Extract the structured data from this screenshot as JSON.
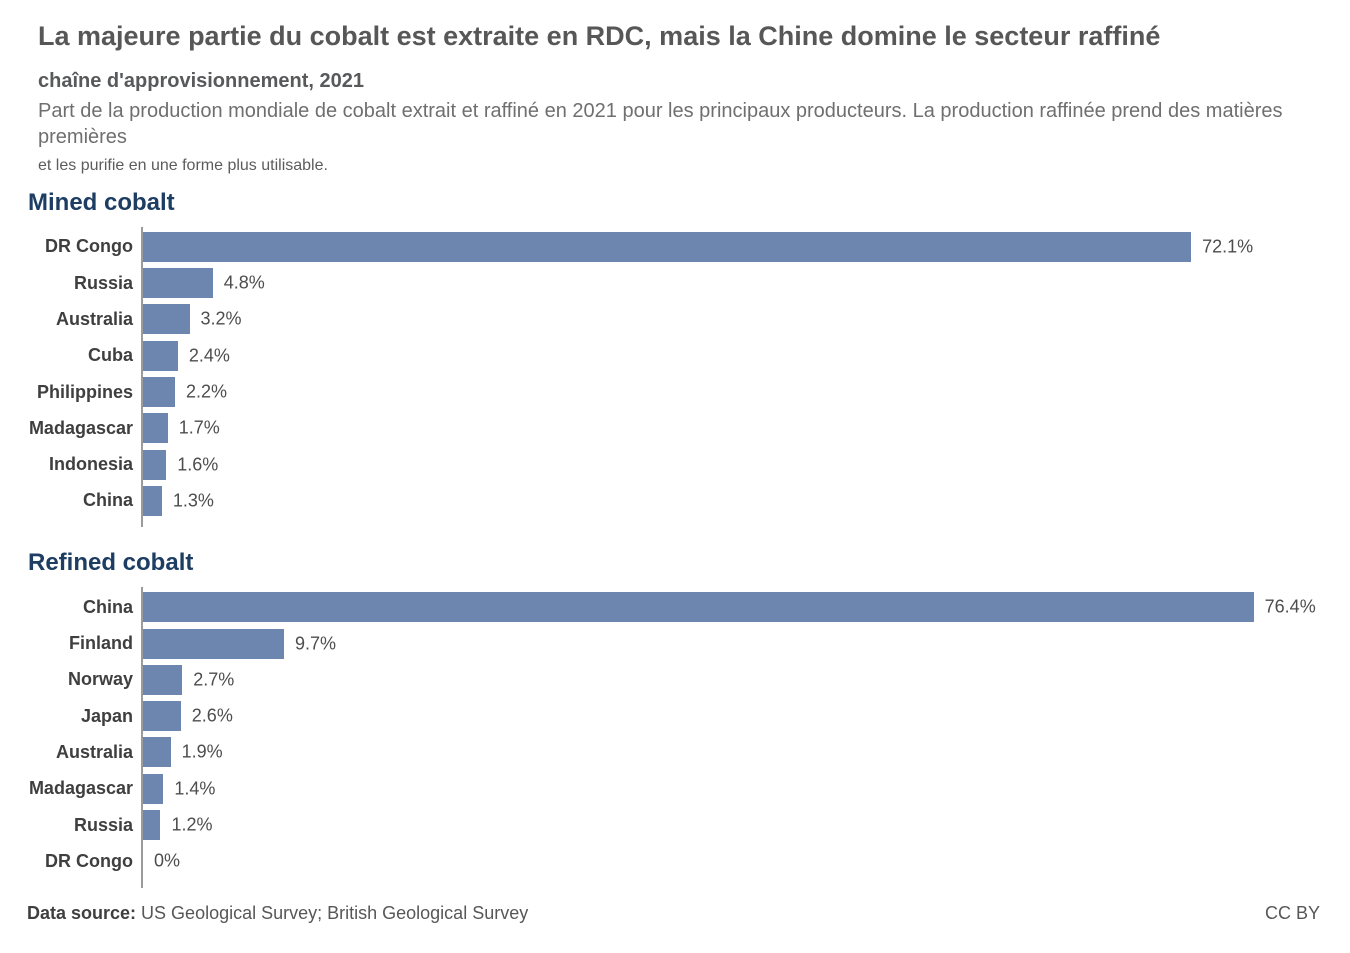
{
  "header": {
    "title": "La majeure partie du cobalt est extraite en RDC, mais la Chine domine le secteur raffiné",
    "subtitle": "chaîne d'approvisionnement, 2021",
    "description": "Part de la production mondiale de cobalt extrait et raffiné en 2021 pour les principaux producteurs. La production raffinée prend des matières premières",
    "note": "et les purifie en une forme plus utilisable."
  },
  "colors": {
    "bar": "#6d86b0",
    "section_heading": "#1d3d63",
    "axis": "#9b9b9b"
  },
  "chart_data": [
    {
      "type": "bar",
      "orientation": "horizontal",
      "title": "Mined cobalt",
      "categories": [
        "DR Congo",
        "Russia",
        "Australia",
        "Cuba",
        "Philippines",
        "Madagascar",
        "Indonesia",
        "China"
      ],
      "values": [
        72.1,
        4.8,
        3.2,
        2.4,
        2.2,
        1.7,
        1.6,
        1.3
      ],
      "value_labels": [
        "72.1%",
        "4.8%",
        "3.2%",
        "2.4%",
        "2.2%",
        "1.7%",
        "1.6%",
        "1.3%"
      ],
      "unit": "%",
      "xlim": [
        0,
        80
      ],
      "grid": false,
      "legend": false
    },
    {
      "type": "bar",
      "orientation": "horizontal",
      "title": "Refined cobalt",
      "categories": [
        "China",
        "Finland",
        "Norway",
        "Japan",
        "Australia",
        "Madagascar",
        "Russia",
        "DR Congo"
      ],
      "values": [
        76.4,
        9.7,
        2.7,
        2.6,
        1.9,
        1.4,
        1.2,
        0
      ],
      "value_labels": [
        "76.4%",
        "9.7%",
        "2.7%",
        "2.6%",
        "1.9%",
        "1.4%",
        "1.2%",
        "0%"
      ],
      "unit": "%",
      "xlim": [
        0,
        80
      ],
      "grid": false,
      "legend": false
    }
  ],
  "footer": {
    "source_label": "Data source:",
    "source_text": " US Geological Survey; British Geological Survey",
    "license": "CC BY"
  }
}
